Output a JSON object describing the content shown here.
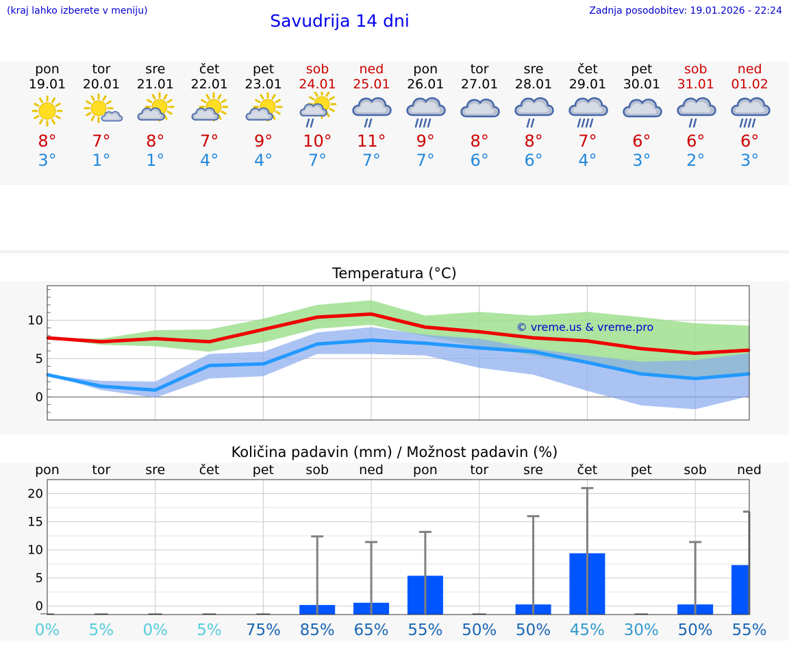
{
  "header": {
    "hint": "(kraj lahko izberete v meniju)",
    "title": "Savudrija 14 dni",
    "updated": "Zadnja posodobitev: 19.01.2026 - 22:24"
  },
  "days": [
    {
      "wd": "pon",
      "date": "19.01",
      "icon": "sun-icon",
      "tmax": "8°",
      "tmin": "3°",
      "weekend": false
    },
    {
      "wd": "tor",
      "date": "20.01",
      "icon": "sun-cloud-icon",
      "tmax": "7°",
      "tmin": "1°",
      "weekend": false
    },
    {
      "wd": "sre",
      "date": "21.01",
      "icon": "sun-behind-cloud-icon",
      "tmax": "8°",
      "tmin": "1°",
      "weekend": false
    },
    {
      "wd": "čet",
      "date": "22.01",
      "icon": "sun-behind-cloud-icon",
      "tmax": "7°",
      "tmin": "4°",
      "weekend": false
    },
    {
      "wd": "pet",
      "date": "23.01",
      "icon": "sun-behind-cloud-icon",
      "tmax": "9°",
      "tmin": "4°",
      "weekend": false
    },
    {
      "wd": "sob",
      "date": "24.01",
      "icon": "sun-cloud-rain-icon",
      "tmax": "10°",
      "tmin": "7°",
      "weekend": true
    },
    {
      "wd": "ned",
      "date": "25.01",
      "icon": "cloud-rain-icon",
      "tmax": "11°",
      "tmin": "7°",
      "weekend": true
    },
    {
      "wd": "pon",
      "date": "26.01",
      "icon": "cloud-heavy-rain-icon",
      "tmax": "9°",
      "tmin": "7°",
      "weekend": false
    },
    {
      "wd": "tor",
      "date": "27.01",
      "icon": "cloud-icon",
      "tmax": "8°",
      "tmin": "6°",
      "weekend": false
    },
    {
      "wd": "sre",
      "date": "28.01",
      "icon": "cloud-rain-icon",
      "tmax": "8°",
      "tmin": "6°",
      "weekend": false
    },
    {
      "wd": "čet",
      "date": "29.01",
      "icon": "cloud-heavy-rain-icon",
      "tmax": "7°",
      "tmin": "4°",
      "weekend": false
    },
    {
      "wd": "pet",
      "date": "30.01",
      "icon": "cloud-icon",
      "tmax": "6°",
      "tmin": "3°",
      "weekend": false
    },
    {
      "wd": "sob",
      "date": "31.01",
      "icon": "cloud-rain-icon",
      "tmax": "6°",
      "tmin": "2°",
      "weekend": true
    },
    {
      "wd": "ned",
      "date": "01.02",
      "icon": "cloud-heavy-rain-icon",
      "tmax": "6°",
      "tmin": "3°",
      "weekend": true
    }
  ],
  "colors": {
    "max_line": "#ee0000",
    "min_line": "#2299ff",
    "max_band": "#99dd88",
    "min_band": "#88aaee",
    "bar": "#0055ff",
    "error": "#808080",
    "weekend": "#cc0000",
    "title": "#0000ee"
  },
  "chart_data": [
    {
      "type": "line",
      "title": "Temperatura (°C)",
      "watermark": "© vreme.us & vreme.pro",
      "x": [
        1,
        2,
        3,
        4,
        5,
        6,
        7,
        8,
        9,
        10,
        11,
        12,
        13,
        14
      ],
      "yticks": [
        0,
        5,
        10
      ],
      "ylim": [
        -3,
        14.5
      ],
      "series": [
        {
          "name": "max",
          "values": [
            7.7,
            7.2,
            7.6,
            7.2,
            8.8,
            10.4,
            10.8,
            9.1,
            8.5,
            7.7,
            7.3,
            6.3,
            5.7,
            6.1
          ],
          "band_low": [
            7.7,
            6.8,
            6.6,
            5.9,
            7.1,
            8.9,
            9.4,
            7.9,
            6.6,
            5.4,
            4.3,
            3.2,
            2.2,
            3.0
          ],
          "band_high": [
            7.7,
            7.6,
            8.7,
            8.8,
            10.2,
            12.0,
            12.6,
            10.6,
            11.1,
            10.6,
            11.1,
            10.4,
            9.6,
            9.3
          ]
        },
        {
          "name": "min",
          "values": [
            2.9,
            1.4,
            0.9,
            4.1,
            4.3,
            6.9,
            7.4,
            7.0,
            6.4,
            5.9,
            4.5,
            3.0,
            2.4,
            3.0
          ],
          "band_low": [
            2.9,
            0.9,
            -0.1,
            2.4,
            2.7,
            5.6,
            5.6,
            5.4,
            3.8,
            2.9,
            0.8,
            -1.1,
            -1.6,
            0.1
          ],
          "band_high": [
            2.9,
            2.1,
            2.0,
            5.6,
            5.9,
            8.4,
            9.1,
            8.1,
            7.6,
            6.3,
            5.4,
            4.6,
            4.8,
            5.7
          ]
        }
      ]
    },
    {
      "type": "bar",
      "title": "Količina padavin (mm) / Možnost padavin (%)",
      "categories": [
        "pon",
        "tor",
        "sre",
        "čet",
        "pet",
        "sob",
        "ned",
        "pon",
        "tor",
        "sre",
        "čet",
        "pet",
        "sob",
        "ned"
      ],
      "yticks": [
        0,
        5,
        10,
        15,
        20
      ],
      "ylim": [
        -1.5,
        22.5
      ],
      "values": [
        0,
        0,
        0,
        0,
        0,
        0.2,
        0.6,
        5.4,
        0,
        0.3,
        9.4,
        0,
        0.3,
        7.3
      ],
      "error_high": [
        0,
        0,
        0,
        0,
        0,
        12.4,
        11.4,
        13.2,
        0,
        16.0,
        21.0,
        0,
        11.4,
        16.8
      ],
      "probability": [
        "0%",
        "5%",
        "0%",
        "5%",
        "75%",
        "85%",
        "65%",
        "55%",
        "50%",
        "50%",
        "45%",
        "30%",
        "50%",
        "55%"
      ],
      "probability_colors": [
        "#55ccdd",
        "#55ccdd",
        "#55ccdd",
        "#55ccdd",
        "#1a66b3",
        "#1a66b3",
        "#1a66b3",
        "#1a66b3",
        "#1a66b3",
        "#1a66b3",
        "#3399cc",
        "#3399cc",
        "#1a66b3",
        "#1a66b3"
      ]
    }
  ]
}
